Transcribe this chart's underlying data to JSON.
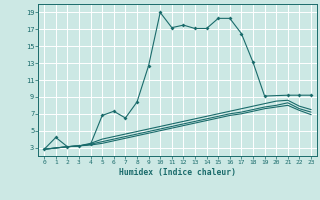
{
  "xlabel": "Humidex (Indice chaleur)",
  "xlim": [
    -0.5,
    23.5
  ],
  "ylim": [
    2,
    20
  ],
  "yticks": [
    3,
    5,
    7,
    9,
    11,
    13,
    15,
    17,
    19
  ],
  "xticks": [
    0,
    1,
    2,
    3,
    4,
    5,
    6,
    7,
    8,
    9,
    10,
    11,
    12,
    13,
    14,
    15,
    16,
    17,
    18,
    19,
    20,
    21,
    22,
    23
  ],
  "bg_color": "#cce8e4",
  "grid_color": "#ffffff",
  "line_color": "#1a6b6b",
  "line1_x": [
    0,
    1,
    2,
    3,
    4,
    5,
    6,
    7,
    8,
    9,
    10,
    11,
    12,
    13,
    14,
    15,
    16,
    17,
    18,
    19,
    21,
    22,
    23
  ],
  "line1_y": [
    2.8,
    4.2,
    3.1,
    3.2,
    3.4,
    6.8,
    7.3,
    6.5,
    8.4,
    12.7,
    19.0,
    17.2,
    17.5,
    17.1,
    17.1,
    18.3,
    18.3,
    16.5,
    13.1,
    9.1,
    9.2,
    9.2,
    9.2
  ],
  "line2_x": [
    0,
    2,
    3,
    4,
    5,
    6,
    7,
    8,
    9,
    10,
    11,
    12,
    13,
    14,
    15,
    16,
    17,
    18,
    19,
    20,
    21,
    22,
    23
  ],
  "line2_y": [
    2.8,
    3.1,
    3.2,
    3.5,
    4.0,
    4.3,
    4.6,
    4.9,
    5.2,
    5.5,
    5.8,
    6.1,
    6.4,
    6.7,
    7.0,
    7.3,
    7.6,
    7.9,
    8.2,
    8.5,
    8.6,
    7.9,
    7.5
  ],
  "line3_x": [
    0,
    2,
    3,
    4,
    5,
    6,
    7,
    8,
    9,
    10,
    11,
    12,
    13,
    14,
    15,
    16,
    17,
    18,
    19,
    20,
    21,
    22,
    23
  ],
  "line3_y": [
    2.8,
    3.1,
    3.2,
    3.4,
    3.7,
    4.0,
    4.3,
    4.6,
    4.9,
    5.2,
    5.5,
    5.8,
    6.1,
    6.4,
    6.7,
    7.0,
    7.2,
    7.5,
    7.8,
    8.0,
    8.3,
    7.6,
    7.2
  ],
  "line4_x": [
    0,
    2,
    3,
    4,
    5,
    6,
    7,
    8,
    9,
    10,
    11,
    12,
    13,
    14,
    15,
    16,
    17,
    18,
    19,
    20,
    21,
    22,
    23
  ],
  "line4_y": [
    2.8,
    3.1,
    3.2,
    3.3,
    3.5,
    3.8,
    4.1,
    4.4,
    4.7,
    5.0,
    5.3,
    5.6,
    5.9,
    6.2,
    6.5,
    6.8,
    7.0,
    7.3,
    7.6,
    7.8,
    8.0,
    7.4,
    6.9
  ]
}
